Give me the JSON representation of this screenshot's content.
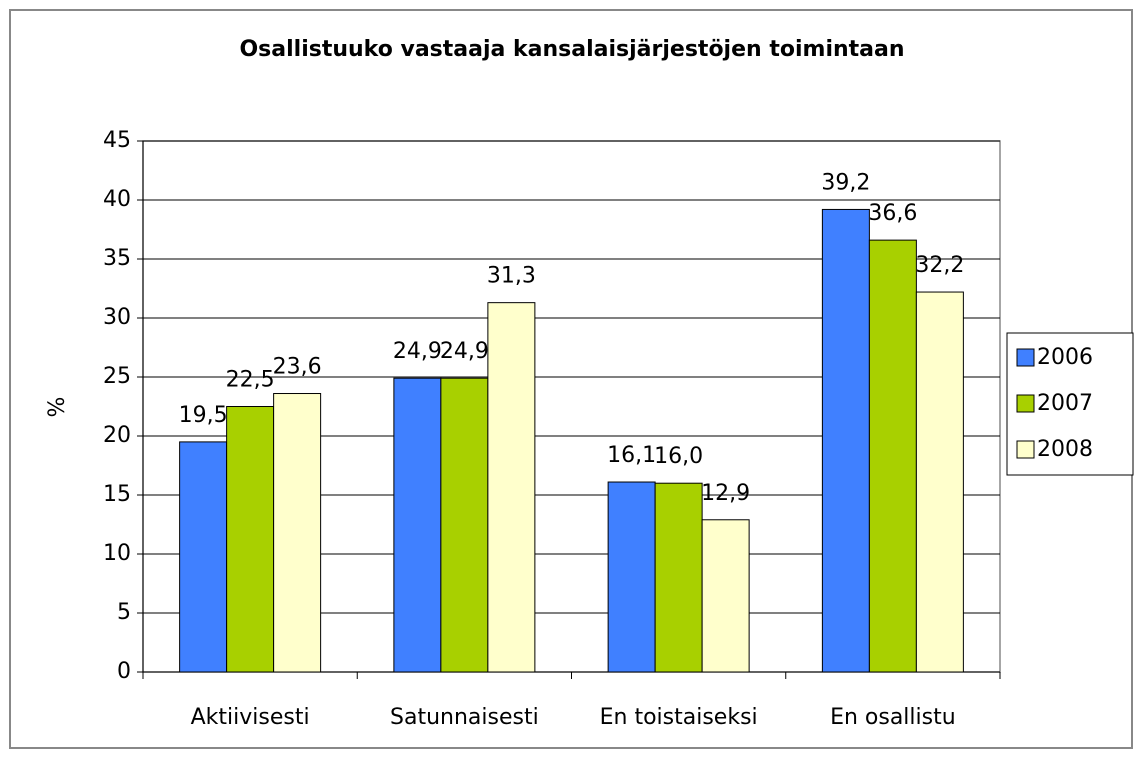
{
  "chart_data": {
    "type": "bar",
    "title": "Osallistuuko vastaaja kansalaisjärjestöjen toimintaan",
    "ylabel": "%",
    "categories": [
      "Aktiivisesti",
      "Satunnaisesti",
      "En toistaiseksi",
      "En osallistu"
    ],
    "series": [
      {
        "name": "2006",
        "color": "#4080ff",
        "values": [
          19.5,
          24.9,
          16.1,
          39.2
        ],
        "value_labels": [
          "19,5",
          "24,9",
          "16,1",
          "39,2"
        ]
      },
      {
        "name": "2007",
        "color": "#a8d000",
        "values": [
          22.5,
          24.9,
          16.0,
          36.6
        ],
        "value_labels": [
          "22,5",
          "24,9",
          "16,0",
          "36,6"
        ]
      },
      {
        "name": "2008",
        "color": "#ffffcc",
        "values": [
          23.6,
          31.3,
          12.9,
          32.2
        ],
        "value_labels": [
          "23,6",
          "31,3",
          "12,9",
          "32,2"
        ]
      }
    ],
    "ylim": [
      0,
      45
    ],
    "yticks": [
      0,
      5,
      10,
      15,
      20,
      25,
      30,
      35,
      40,
      45
    ],
    "grid": true,
    "legend": "right"
  }
}
